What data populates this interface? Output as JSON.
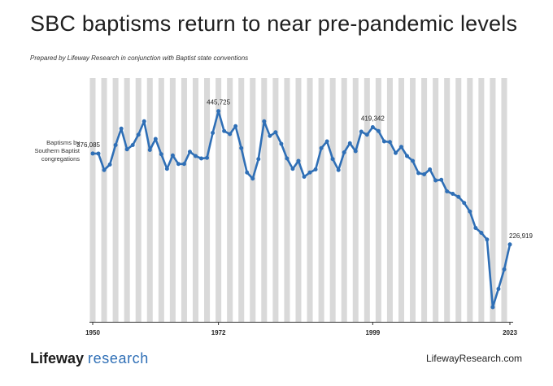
{
  "header": {
    "title": "SBC baptisms return to near pre-pandemic levels",
    "subtitle": "Prepared by Lifeway Research in conjunction with Baptist state conventions"
  },
  "footer": {
    "brand_part1": "Lifeway",
    "brand_part2": "research",
    "url": "LifewayResearch.com"
  },
  "colors": {
    "line": "#2f6fb6",
    "band": "#d9d9d9",
    "axis": "#333333"
  },
  "chart_data": {
    "type": "line",
    "ylabel": "Baptisms by Southern Baptist congregations",
    "x_ticks": [
      1950,
      1972,
      1999,
      2023
    ],
    "xlim": [
      1950,
      2023
    ],
    "ylim": [
      100000,
      500000
    ],
    "annotations": [
      {
        "x": 1950,
        "label": "376,085"
      },
      {
        "x": 1972,
        "label": "445,725"
      },
      {
        "x": 1999,
        "label": "419,342"
      },
      {
        "x": 2023,
        "label": "226,919"
      }
    ],
    "series": [
      {
        "x": [
          1950,
          1951,
          1952,
          1953,
          1954,
          1955,
          1956,
          1957,
          1958,
          1959,
          1960,
          1961,
          1962,
          1963,
          1964,
          1965,
          1966,
          1967,
          1968,
          1969,
          1970,
          1971,
          1972,
          1973,
          1974,
          1975,
          1976,
          1977,
          1978,
          1979,
          1980,
          1981,
          1982,
          1983,
          1984,
          1985,
          1986,
          1987,
          1988,
          1989,
          1990,
          1991,
          1992,
          1993,
          1994,
          1995,
          1996,
          1997,
          1998,
          1999,
          2000,
          2001,
          2002,
          2003,
          2004,
          2005,
          2006,
          2007,
          2008,
          2009,
          2010,
          2011,
          2012,
          2013,
          2014,
          2015,
          2016,
          2017,
          2018,
          2019,
          2020,
          2021,
          2022,
          2023
        ],
        "values": [
          376085,
          376000,
          349000,
          358000,
          390000,
          417000,
          383000,
          390000,
          407000,
          429000,
          382000,
          400000,
          375000,
          351000,
          373000,
          359000,
          359000,
          379000,
          372000,
          368000,
          369000,
          410000,
          445725,
          413000,
          408000,
          421000,
          385000,
          345000,
          335000,
          367000,
          429000,
          405000,
          411000,
          392000,
          368000,
          351000,
          364000,
          338000,
          345000,
          350000,
          385000,
          396000,
          367000,
          349000,
          378000,
          393000,
          380000,
          412000,
          407000,
          419342,
          413000,
          396000,
          395000,
          377000,
          387000,
          372000,
          364000,
          344000,
          342000,
          350000,
          332000,
          333000,
          314000,
          310000,
          305000,
          295000,
          281000,
          254000,
          246000,
          235000,
          124000,
          154000,
          186000,
          226919
        ]
      }
    ]
  }
}
